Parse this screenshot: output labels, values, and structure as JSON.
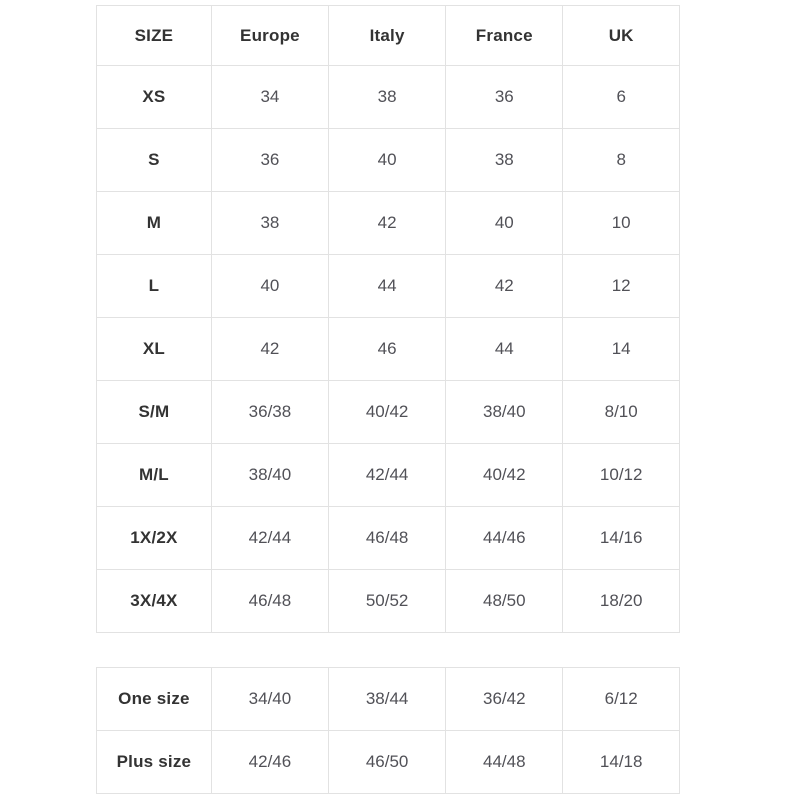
{
  "colors": {
    "background": "#ffffff",
    "border": "#e2e2e2",
    "header_text": "#333333",
    "label_text": "#333333",
    "value_text": "#515157"
  },
  "chart_data": [
    {
      "type": "table",
      "columns": [
        "SIZE",
        "Europe",
        "Italy",
        "France",
        "UK"
      ],
      "rows": [
        [
          "XS",
          "34",
          "38",
          "36",
          "6"
        ],
        [
          "S",
          "36",
          "40",
          "38",
          "8"
        ],
        [
          "M",
          "38",
          "42",
          "40",
          "10"
        ],
        [
          "L",
          "40",
          "44",
          "42",
          "12"
        ],
        [
          "XL",
          "42",
          "46",
          "44",
          "14"
        ],
        [
          "S/M",
          "36/38",
          "40/42",
          "38/40",
          "8/10"
        ],
        [
          "M/L",
          "38/40",
          "42/44",
          "40/42",
          "10/12"
        ],
        [
          "1X/2X",
          "42/44",
          "46/48",
          "44/46",
          "14/16"
        ],
        [
          "3X/4X",
          "46/48",
          "50/52",
          "48/50",
          "18/20"
        ]
      ],
      "layout": {
        "header_row": true,
        "grid": true,
        "first_column_bold": true
      }
    },
    {
      "type": "table",
      "columns": [],
      "rows": [
        [
          "One size",
          "34/40",
          "38/44",
          "36/42",
          "6/12"
        ],
        [
          "Plus size",
          "42/46",
          "46/50",
          "44/48",
          "14/18"
        ]
      ],
      "layout": {
        "header_row": false,
        "grid": true,
        "first_column_bold": true
      }
    }
  ]
}
